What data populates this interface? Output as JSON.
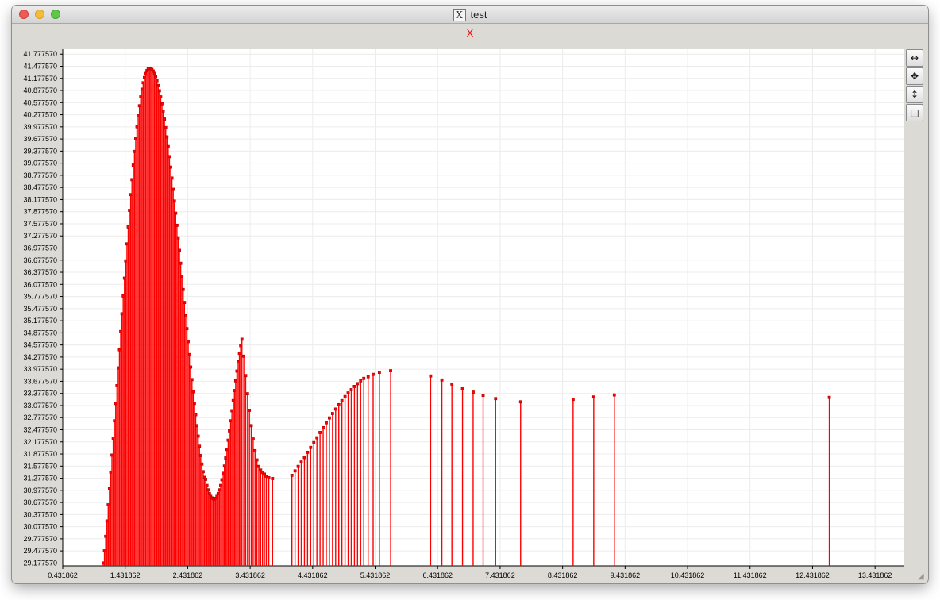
{
  "window": {
    "title": "test",
    "icon": "x11-icon"
  },
  "toolbar": [
    {
      "name": "zoom-horizontal-icon",
      "glyph": "↔"
    },
    {
      "name": "pan-icon",
      "glyph": "✥"
    },
    {
      "name": "zoom-vertical-icon",
      "glyph": "↕"
    },
    {
      "name": "reset-view-icon",
      "glyph": "□"
    }
  ],
  "chart_data": {
    "type": "bar",
    "style": "stem",
    "title": "X",
    "xlabel": "",
    "ylabel": "",
    "color": "#ff0000",
    "grid": true,
    "xlim": [
      0.431862,
      13.9
    ],
    "ylim": [
      29.10757,
      41.9
    ],
    "y_baseline": 29.10757,
    "x_ticks": [
      0.431862,
      1.431862,
      2.431862,
      3.431862,
      4.431862,
      5.431862,
      6.431862,
      7.431862,
      8.431862,
      9.431862,
      10.431862,
      11.431862,
      12.431862,
      13.431862
    ],
    "x_tick_labels": [
      "0.431862",
      "1.431862",
      "2.431862",
      "3.431862",
      "4.431862",
      "5.431862",
      "6.431862",
      "7.431862",
      "8.431862",
      "9.431862",
      "10.431862",
      "11.431862",
      "12.431862",
      "13.431862"
    ],
    "y_ticks": [
      29.17757,
      29.47757,
      29.77757,
      30.07757,
      30.37757,
      30.67757,
      30.97757,
      31.27757,
      31.57757,
      31.87757,
      32.17757,
      32.47757,
      32.77757,
      33.07757,
      33.37757,
      33.67757,
      33.97757,
      34.27757,
      34.57757,
      34.87757,
      35.17757,
      35.47757,
      35.77757,
      36.07757,
      36.37757,
      36.67757,
      36.97757,
      37.27757,
      37.57757,
      37.87757,
      38.17757,
      38.47757,
      38.77757,
      39.07757,
      39.37757,
      39.67757,
      39.97757,
      40.27757,
      40.57757,
      40.87757,
      41.17757,
      41.47757,
      41.77757
    ],
    "y_tick_labels": [
      "29.177570",
      "29.477570",
      "29.777570",
      "30.077570",
      "30.377570",
      "30.677570",
      "30.977570",
      "31.277570",
      "31.577570",
      "31.877570",
      "32.177570",
      "32.477570",
      "32.777570",
      "33.077570",
      "33.377570",
      "33.677570",
      "33.977570",
      "34.277570",
      "34.577570",
      "34.877570",
      "35.177570",
      "35.477570",
      "35.777570",
      "36.077570",
      "36.377570",
      "36.677570",
      "36.977570",
      "37.277570",
      "37.577570",
      "37.877570",
      "38.177570",
      "38.477570",
      "38.777570",
      "39.077570",
      "39.377570",
      "39.677570",
      "39.977570",
      "40.277570",
      "40.577570",
      "40.877570",
      "41.177570",
      "41.477570",
      "41.777570"
    ],
    "x": [
      1.08,
      1.1,
      1.12,
      1.14,
      1.16,
      1.18,
      1.2,
      1.22,
      1.24,
      1.26,
      1.28,
      1.3,
      1.32,
      1.34,
      1.36,
      1.38,
      1.4,
      1.42,
      1.44,
      1.46,
      1.48,
      1.5,
      1.52,
      1.54,
      1.56,
      1.58,
      1.6,
      1.62,
      1.64,
      1.66,
      1.68,
      1.7,
      1.72,
      1.74,
      1.76,
      1.78,
      1.8,
      1.82,
      1.84,
      1.86,
      1.88,
      1.9,
      1.92,
      1.94,
      1.96,
      1.98,
      2.0,
      2.02,
      2.04,
      2.06,
      2.08,
      2.1,
      2.12,
      2.14,
      2.16,
      2.18,
      2.2,
      2.22,
      2.24,
      2.26,
      2.28,
      2.3,
      2.32,
      2.34,
      2.36,
      2.38,
      2.4,
      2.42,
      2.44,
      2.46,
      2.48,
      2.5,
      2.52,
      2.54,
      2.56,
      2.58,
      2.6,
      2.62,
      2.64,
      2.66,
      2.68,
      2.7,
      2.72,
      2.74,
      2.76,
      2.78,
      2.8,
      2.82,
      2.84,
      2.86,
      2.88,
      2.9,
      2.92,
      2.94,
      2.96,
      2.98,
      3.0,
      3.02,
      3.04,
      3.06,
      3.08,
      3.1,
      3.12,
      3.14,
      3.16,
      3.18,
      3.2,
      3.22,
      3.24,
      3.26,
      3.28,
      3.3,
      3.33,
      3.36,
      3.39,
      3.42,
      3.45,
      3.48,
      3.51,
      3.54,
      3.57,
      3.6,
      3.63,
      3.66,
      3.69,
      3.73,
      3.79,
      4.1,
      4.15,
      4.2,
      4.25,
      4.3,
      4.35,
      4.4,
      4.45,
      4.5,
      4.55,
      4.6,
      4.65,
      4.7,
      4.75,
      4.8,
      4.85,
      4.9,
      4.95,
      5.0,
      5.05,
      5.1,
      5.15,
      5.2,
      5.25,
      5.32,
      5.4,
      5.5,
      5.68,
      6.32,
      6.5,
      6.66,
      6.83,
      7.0,
      7.16,
      7.36,
      7.76,
      8.6,
      8.93,
      9.26,
      12.7
    ],
    "values": [
      29.18,
      29.48,
      29.84,
      30.22,
      30.62,
      31.02,
      31.43,
      31.85,
      32.27,
      32.7,
      33.13,
      33.57,
      34.01,
      34.46,
      34.91,
      35.35,
      35.79,
      36.23,
      36.66,
      37.08,
      37.5,
      37.91,
      38.3,
      38.67,
      39.03,
      39.37,
      39.69,
      39.98,
      40.25,
      40.5,
      40.72,
      40.91,
      41.07,
      41.2,
      41.3,
      41.37,
      41.41,
      41.43,
      41.42,
      41.4,
      41.36,
      41.3,
      41.22,
      41.12,
      41.0,
      40.87,
      40.72,
      40.55,
      40.37,
      40.17,
      39.96,
      39.73,
      39.49,
      39.24,
      38.98,
      38.71,
      38.43,
      38.14,
      37.84,
      37.54,
      37.23,
      36.92,
      36.6,
      36.28,
      35.95,
      35.63,
      35.3,
      34.98,
      34.66,
      34.34,
      34.03,
      33.72,
      33.42,
      33.13,
      32.85,
      32.58,
      32.32,
      32.07,
      31.84,
      31.63,
      31.44,
      31.3,
      31.25,
      31.1,
      30.99,
      30.9,
      30.83,
      30.79,
      30.77,
      30.76,
      30.78,
      30.83,
      30.9,
      30.99,
      31.1,
      31.24,
      31.4,
      31.58,
      31.78,
      31.99,
      32.22,
      32.45,
      32.7,
      32.95,
      33.2,
      33.45,
      33.69,
      33.93,
      34.16,
      34.37,
      34.56,
      34.72,
      34.3,
      33.82,
      33.37,
      32.96,
      32.58,
      32.25,
      31.96,
      31.73,
      31.57,
      31.48,
      31.42,
      31.38,
      31.33,
      31.29,
      31.27,
      31.35,
      31.46,
      31.57,
      31.68,
      31.79,
      31.92,
      32.04,
      32.16,
      32.28,
      32.41,
      32.53,
      32.65,
      32.77,
      32.88,
      32.99,
      33.1,
      33.2,
      33.3,
      33.39,
      33.47,
      33.55,
      33.62,
      33.69,
      33.75,
      33.79,
      33.85,
      33.9,
      33.94,
      33.81,
      33.71,
      33.61,
      33.5,
      33.41,
      33.33,
      33.25,
      33.17,
      33.23,
      33.29,
      33.34,
      33.28
    ]
  }
}
